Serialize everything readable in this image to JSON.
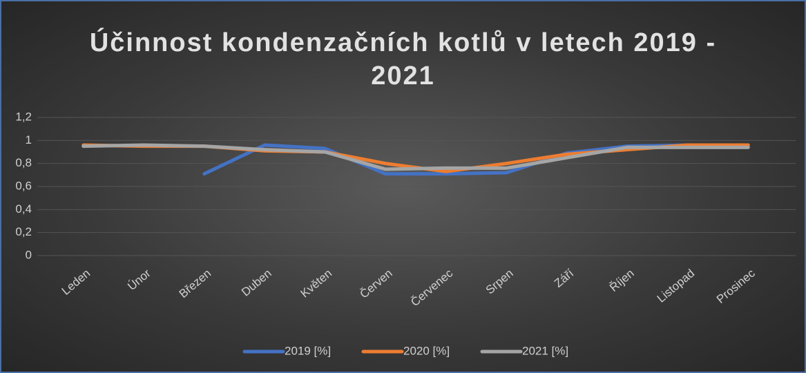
{
  "chart_data": {
    "type": "line",
    "title": "Účinnost kondenzačních kotlů v letech 2019 - 2021",
    "categories": [
      "Leden",
      "Únor",
      "Březen",
      "Duben",
      "Květen",
      "Červen",
      "Červenec",
      "Srpen",
      "Září",
      "Říjen",
      "Listopad",
      "Prosinec"
    ],
    "series": [
      {
        "name": "2019 [%]",
        "color": "#4472c4",
        "values": [
          null,
          null,
          0.71,
          0.96,
          0.93,
          0.71,
          0.71,
          0.72,
          0.89,
          0.95,
          0.96,
          0.96
        ]
      },
      {
        "name": "2020 [%]",
        "color": "#ed7d31",
        "values": [
          0.96,
          0.95,
          0.95,
          0.91,
          0.9,
          0.8,
          0.73,
          0.8,
          0.88,
          0.92,
          0.96,
          0.96
        ]
      },
      {
        "name": "2021 [%]",
        "color": "#a5a5a5",
        "values": [
          0.95,
          0.96,
          0.95,
          0.92,
          0.9,
          0.75,
          0.76,
          0.76,
          0.85,
          0.94,
          0.94,
          0.94
        ]
      }
    ],
    "ylim": [
      0,
      1.2
    ],
    "yticks": [
      0,
      {
        "value": 0.2,
        "label": "0,2"
      },
      {
        "value": 0.4,
        "label": "0,4"
      },
      {
        "value": 0.6,
        "label": "0,6"
      },
      {
        "value": 0.8,
        "label": "0,8"
      },
      1,
      {
        "value": 1.2,
        "label": "1,2"
      }
    ],
    "grid": true,
    "legend": "bottom"
  }
}
